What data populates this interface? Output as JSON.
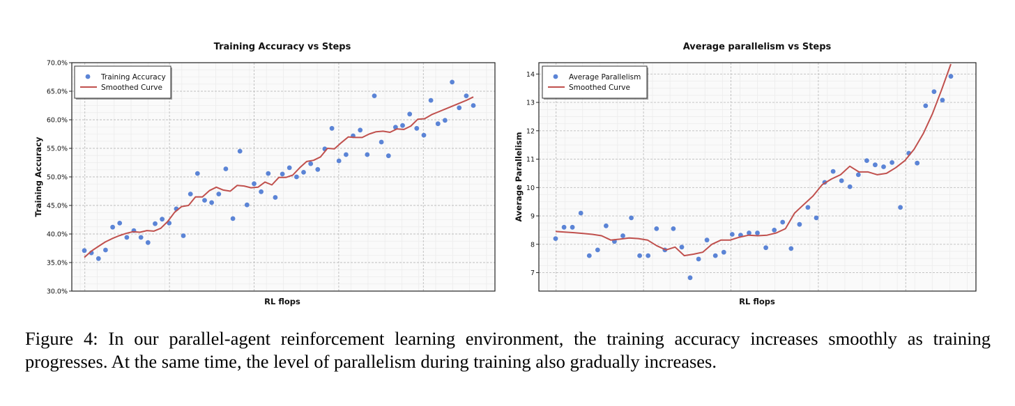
{
  "chart_data": [
    {
      "type": "scatter",
      "title": "Training Accuracy vs Steps",
      "xlabel": "RL flops",
      "ylabel": "Training Accuracy",
      "ylim": [
        30,
        70
      ],
      "yticks": [
        30,
        35,
        40,
        45,
        50,
        55,
        60,
        65,
        70
      ],
      "ytick_format": "percent_1dp",
      "grid": true,
      "legend_position": "top-left",
      "series": [
        {
          "name": "Training Accuracy",
          "kind": "points",
          "color": "#5b84d6",
          "y": [
            37.1,
            36.7,
            35.7,
            37.2,
            41.2,
            41.9,
            39.4,
            40.6,
            39.4,
            38.5,
            41.8,
            42.6,
            41.9,
            44.4,
            39.7,
            47.0,
            50.6,
            45.9,
            45.5,
            47.0,
            51.4,
            42.7,
            54.5,
            45.1,
            48.8,
            47.4,
            50.6,
            46.4,
            50.5,
            51.6,
            50.0,
            50.8,
            52.3,
            51.3,
            54.9,
            58.5,
            52.8,
            53.9,
            57.2,
            58.2,
            53.9,
            64.2,
            56.1,
            53.7,
            58.7,
            59.0,
            61.0,
            58.5,
            57.3,
            63.4,
            59.3,
            59.9,
            66.6,
            62.1,
            64.2,
            62.5
          ]
        },
        {
          "name": "Smoothed Curve",
          "kind": "line",
          "color": "#c0504d",
          "y": [
            35.9,
            37.0,
            37.8,
            38.6,
            39.2,
            39.7,
            40.1,
            40.4,
            40.3,
            40.6,
            40.5,
            41.0,
            42.2,
            43.8,
            44.8,
            45.0,
            46.5,
            46.5,
            47.6,
            48.2,
            47.7,
            47.5,
            48.5,
            48.4,
            48.1,
            48.2,
            49.1,
            48.6,
            49.9,
            49.9,
            50.3,
            51.6,
            52.7,
            52.9,
            53.5,
            55.0,
            54.9,
            56.0,
            57.0,
            56.9,
            56.9,
            57.5,
            57.9,
            58.0,
            57.8,
            58.4,
            58.3,
            58.9,
            60.1,
            60.2,
            60.9,
            61.4,
            61.9,
            62.4,
            62.9,
            63.4,
            64.0
          ]
        }
      ]
    },
    {
      "type": "scatter",
      "title": "Average parallelism vs Steps",
      "xlabel": "RL flops",
      "ylabel": "Average Parallelism",
      "ylim": [
        6.35,
        14.4
      ],
      "yticks": [
        7,
        8,
        9,
        10,
        11,
        12,
        13,
        14
      ],
      "grid": true,
      "legend_position": "top-left",
      "series": [
        {
          "name": "Average Parallelism",
          "kind": "points",
          "color": "#5b84d6",
          "y": [
            8.2,
            8.6,
            8.6,
            9.1,
            7.6,
            7.8,
            8.65,
            8.1,
            8.3,
            8.93,
            7.6,
            7.6,
            8.55,
            7.8,
            8.55,
            7.9,
            6.82,
            7.48,
            8.15,
            7.6,
            7.72,
            8.35,
            8.32,
            8.4,
            8.4,
            7.88,
            8.5,
            8.78,
            7.85,
            8.7,
            9.3,
            8.93,
            10.18,
            10.57,
            10.24,
            10.03,
            10.45,
            10.95,
            10.8,
            10.73,
            10.88,
            9.3,
            11.21,
            10.86,
            12.88,
            13.38,
            13.08,
            13.92
          ]
        },
        {
          "name": "Smoothed Curve",
          "kind": "line",
          "color": "#c0504d",
          "y": [
            8.45,
            8.43,
            8.41,
            8.38,
            8.35,
            8.3,
            8.15,
            8.18,
            8.22,
            8.2,
            8.15,
            7.95,
            7.8,
            7.9,
            7.6,
            7.65,
            7.72,
            8.0,
            8.15,
            8.15,
            8.25,
            8.32,
            8.3,
            8.32,
            8.4,
            8.55,
            9.1,
            9.4,
            9.7,
            10.1,
            10.3,
            10.45,
            10.75,
            10.55,
            10.55,
            10.45,
            10.5,
            10.7,
            10.95,
            11.35,
            11.9,
            12.6,
            13.45,
            14.35
          ]
        }
      ]
    }
  ],
  "caption": "Figure 4: In our parallel-agent reinforcement learning environment, the training accuracy increases smoothly as training progresses. At the same time, the level of parallelism during training also gradually increases."
}
